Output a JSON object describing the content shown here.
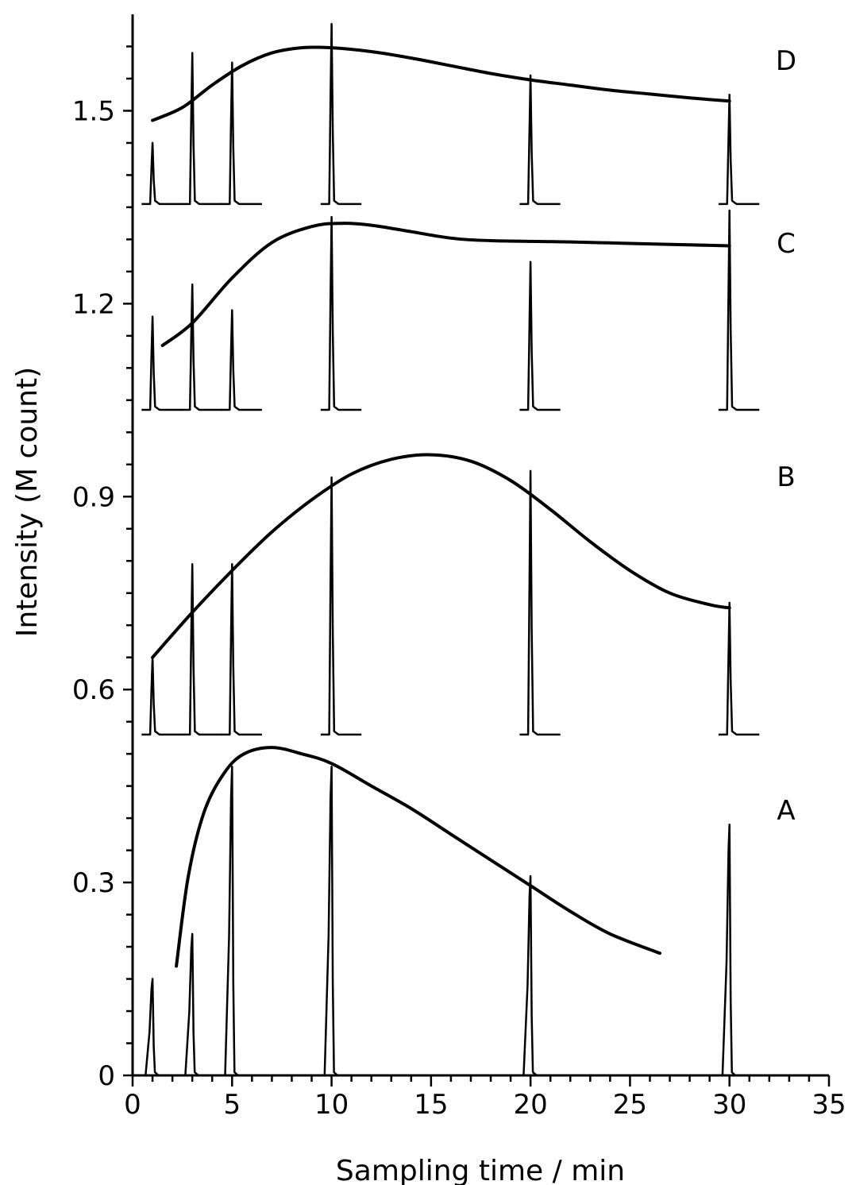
{
  "chart_data": {
    "type": "line",
    "title": "",
    "xlabel": "Sampling  time / min",
    "ylabel": "Intensity (M count)",
    "xlim": [
      0,
      35
    ],
    "ylim": [
      0,
      1.65
    ],
    "x_ticks": [
      "0",
      "5",
      "10",
      "15",
      "20",
      "25",
      "30",
      "35"
    ],
    "x_tick_values": [
      0,
      5,
      10,
      15,
      20,
      25,
      30,
      35
    ],
    "y_ticks": [
      "0",
      "0.3",
      "0.6",
      "0.9",
      "1.2",
      "1.5"
    ],
    "y_tick_values": [
      0,
      0.3,
      0.6,
      0.9,
      1.2,
      1.5
    ],
    "grid": false,
    "panels": [
      {
        "label": "A",
        "baseline": 0,
        "peaks": [
          {
            "x": 1,
            "height": 0.15
          },
          {
            "x": 3,
            "height": 0.22
          },
          {
            "x": 5,
            "height": 0.48
          },
          {
            "x": 10,
            "height": 0.48
          },
          {
            "x": 20,
            "height": 0.31
          },
          {
            "x": 30,
            "height": 0.39
          }
        ],
        "curve": [
          [
            2.2,
            0.17
          ],
          [
            2.8,
            0.31
          ],
          [
            3.6,
            0.41
          ],
          [
            4.6,
            0.47
          ],
          [
            5.6,
            0.5
          ],
          [
            7,
            0.51
          ],
          [
            8.5,
            0.5
          ],
          [
            10,
            0.485
          ],
          [
            12,
            0.45
          ],
          [
            14,
            0.415
          ],
          [
            16,
            0.375
          ],
          [
            18,
            0.335
          ],
          [
            20,
            0.295
          ],
          [
            22,
            0.255
          ],
          [
            24,
            0.22
          ],
          [
            26.5,
            0.19
          ]
        ]
      },
      {
        "label": "B",
        "baseline": 0.53,
        "peaks": [
          {
            "x": 1,
            "height": 0.12
          },
          {
            "x": 3,
            "height": 0.265
          },
          {
            "x": 5,
            "height": 0.265
          },
          {
            "x": 10,
            "height": 0.4
          },
          {
            "x": 20,
            "height": 0.41
          },
          {
            "x": 30,
            "height": 0.205
          }
        ],
        "curve": [
          [
            1,
            0.65
          ],
          [
            3,
            0.72
          ],
          [
            5,
            0.785
          ],
          [
            7,
            0.845
          ],
          [
            9,
            0.895
          ],
          [
            11,
            0.935
          ],
          [
            13,
            0.958
          ],
          [
            15,
            0.965
          ],
          [
            17,
            0.955
          ],
          [
            19,
            0.925
          ],
          [
            21,
            0.88
          ],
          [
            23,
            0.83
          ],
          [
            25,
            0.785
          ],
          [
            27,
            0.75
          ],
          [
            29,
            0.732
          ],
          [
            30,
            0.727
          ]
        ]
      },
      {
        "label": "C",
        "baseline": 1.035,
        "peaks": [
          {
            "x": 1,
            "height": 0.145
          },
          {
            "x": 3,
            "height": 0.195
          },
          {
            "x": 5,
            "height": 0.155
          },
          {
            "x": 10,
            "height": 0.3
          },
          {
            "x": 20,
            "height": 0.23
          },
          {
            "x": 30,
            "height": 0.31
          }
        ],
        "curve": [
          [
            1.5,
            1.135
          ],
          [
            3,
            1.17
          ],
          [
            5,
            1.24
          ],
          [
            7,
            1.295
          ],
          [
            9,
            1.32
          ],
          [
            10.5,
            1.325
          ],
          [
            12,
            1.322
          ],
          [
            14,
            1.312
          ],
          [
            16,
            1.302
          ],
          [
            18,
            1.298
          ],
          [
            22,
            1.296
          ],
          [
            26,
            1.293
          ],
          [
            30,
            1.29
          ]
        ]
      },
      {
        "label": "D",
        "baseline": 1.355,
        "peaks": [
          {
            "x": 1,
            "height": 0.095
          },
          {
            "x": 3,
            "height": 0.235
          },
          {
            "x": 5,
            "height": 0.22
          },
          {
            "x": 10,
            "height": 0.28
          },
          {
            "x": 20,
            "height": 0.2
          },
          {
            "x": 30,
            "height": 0.17
          }
        ],
        "curve": [
          [
            1,
            1.485
          ],
          [
            2.5,
            1.505
          ],
          [
            4,
            1.54
          ],
          [
            5.5,
            1.57
          ],
          [
            7,
            1.59
          ],
          [
            8.5,
            1.598
          ],
          [
            10,
            1.598
          ],
          [
            12,
            1.592
          ],
          [
            14,
            1.582
          ],
          [
            16,
            1.57
          ],
          [
            18,
            1.558
          ],
          [
            20,
            1.548
          ],
          [
            22,
            1.54
          ],
          [
            24,
            1.532
          ],
          [
            26,
            1.526
          ],
          [
            28,
            1.52
          ],
          [
            30,
            1.515
          ]
        ]
      }
    ]
  }
}
